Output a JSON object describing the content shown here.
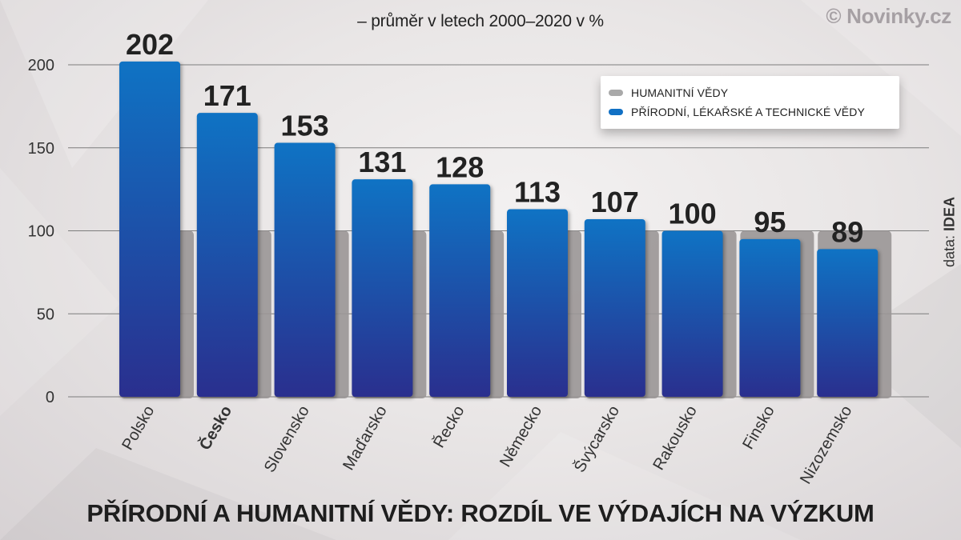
{
  "brand": "© Novinky.cz",
  "subtitle": "– průměr v letech 2000–2020 v %",
  "title": "PŘÍRODNÍ A HUMANITNÍ VĚDY: ROZDÍL VE VÝDAJÍCH NA VÝZKUM",
  "source_prefix": "data: ",
  "source_name": "IDEA",
  "legend": {
    "items": [
      {
        "label": "HUMANITNÍ VĚDY",
        "color": "#a9a9a9"
      },
      {
        "label": "PŘÍRODNÍ, LÉKAŘSKÉ A TECHNICKÉ VĚDY",
        "color": "#1170c4"
      }
    ]
  },
  "colors": {
    "blue_top": "#0f73c4",
    "blue_bottom": "#2a2f8e",
    "gray_bar": "#9a9696",
    "grid": "#7d7d7d",
    "value_text": "#222222"
  },
  "chart_data": {
    "type": "bar",
    "ylim": [
      0,
      200
    ],
    "yticks": [
      0,
      50,
      100,
      150,
      200
    ],
    "grid": true,
    "legend_position": "top-right",
    "categories": [
      "Polsko",
      "Česko",
      "Slovensko",
      "Maďarsko",
      "Řecko",
      "Německo",
      "Švýcarsko",
      "Rakousko",
      "Finsko",
      "Nizozemsko"
    ],
    "highlight_category": "Česko",
    "series": [
      {
        "name": "HUMANITNÍ VĚDY",
        "values": [
          100,
          100,
          100,
          100,
          100,
          100,
          100,
          100,
          100,
          100
        ]
      },
      {
        "name": "PŘÍRODNÍ, LÉKAŘSKÉ A TECHNICKÉ VĚDY",
        "values": [
          202,
          171,
          153,
          131,
          128,
          113,
          107,
          100,
          95,
          89
        ]
      }
    ],
    "data_labels": [
      "202",
      "171",
      "153",
      "131",
      "128",
      "113",
      "107",
      "100",
      "95",
      "89"
    ]
  }
}
